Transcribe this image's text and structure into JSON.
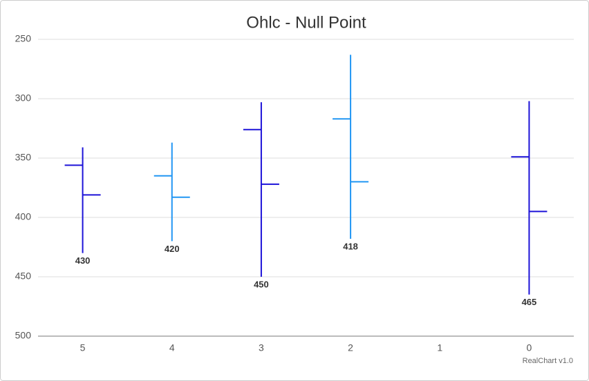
{
  "chart_data": {
    "type": "ohlc",
    "title": "Ohlc - Null Point",
    "categories": [
      "5",
      "4",
      "3",
      "2",
      "1",
      "0"
    ],
    "series": [
      {
        "open": [
          356,
          365,
          326,
          317,
          null,
          349
        ],
        "high": [
          430,
          420,
          450,
          418,
          null,
          465
        ],
        "low": [
          341,
          337,
          303,
          263,
          null,
          302
        ],
        "close": [
          381,
          383,
          372,
          370,
          null,
          395
        ],
        "colors": [
          "#1c12d8",
          "#2196f3",
          "#1c12d8",
          "#2196f3",
          null,
          "#1c12d8"
        ]
      }
    ],
    "ylim": [
      250,
      500
    ],
    "yticks": [
      250,
      300,
      350,
      400,
      450,
      500
    ],
    "y_reversed": true,
    "grid": true,
    "credits": "RealChart v1.0"
  }
}
